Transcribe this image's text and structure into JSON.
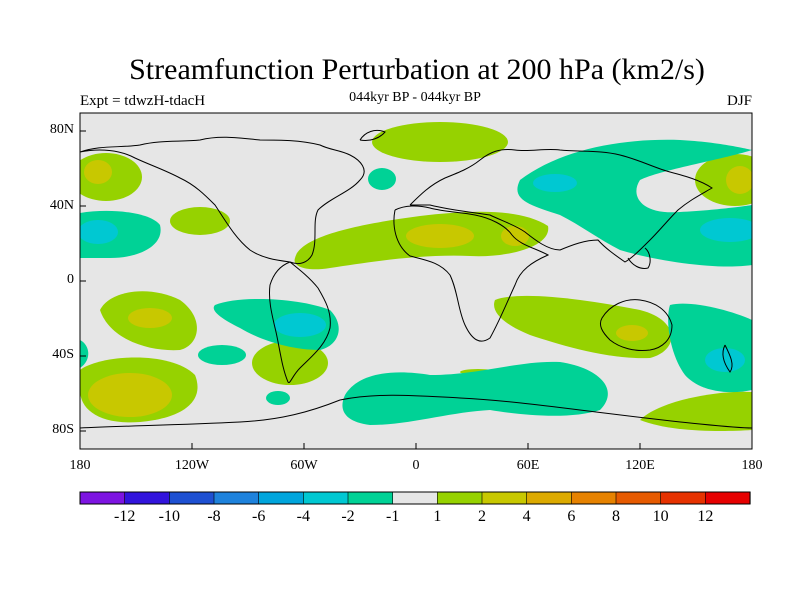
{
  "title": "Streamfunction Perturbation at 200 hPa (km2/s)",
  "subtitle_left": "Expt = tdwzH-tdacH",
  "subtitle_center": "044kyr BP - 044kyr BP",
  "subtitle_right": "DJF",
  "y_ticks": [
    "80N",
    "40N",
    "0",
    "40S",
    "80S"
  ],
  "x_ticks": [
    "180",
    "120W",
    "60W",
    "0",
    "60E",
    "120E",
    "180"
  ],
  "colorbar": {
    "colors": [
      "#7d14e1",
      "#3214dc",
      "#1e50d2",
      "#1e82dc",
      "#00a5dc",
      "#00c8d2",
      "#00d296",
      "#e6e6e6",
      "#96d200",
      "#c8c800",
      "#dcaa00",
      "#e68200",
      "#e65a00",
      "#e63200",
      "#e60000"
    ],
    "labels": [
      "-12",
      "-10",
      "-8",
      "-6",
      "-4",
      "-2",
      "-1",
      "1",
      "2",
      "4",
      "6",
      "8",
      "10",
      "12"
    ]
  },
  "map_colors": {
    "background": "#e6e6e6",
    "pos1": "#96d200",
    "pos2": "#c8c800",
    "pos4": "#dcaa00",
    "neg1": "#00d296",
    "neg2": "#00c8d2",
    "coast": "#000000"
  }
}
